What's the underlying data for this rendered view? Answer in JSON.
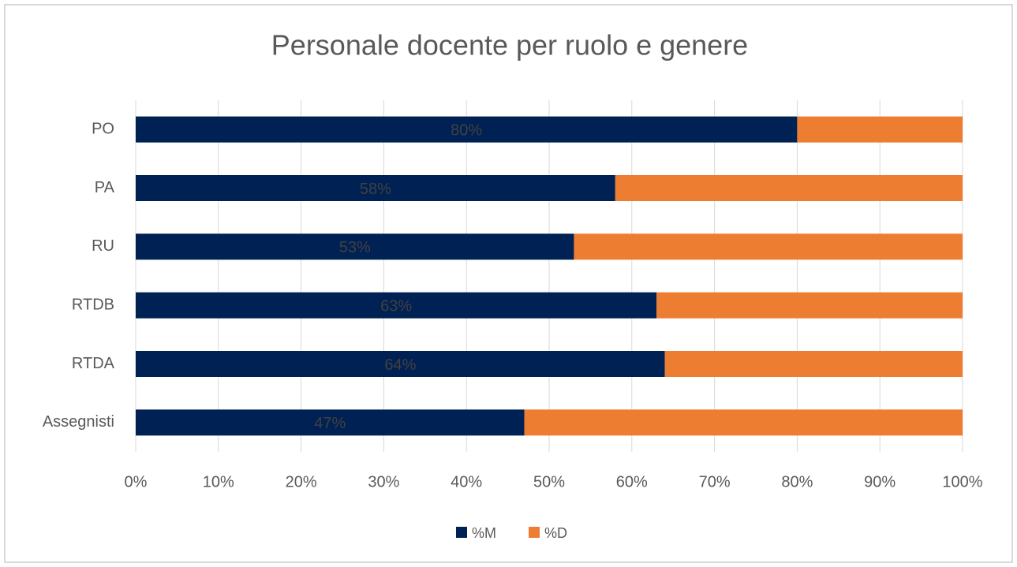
{
  "chart_data": {
    "type": "stacked_bar_horizontal",
    "title": "Personale docente per ruolo e genere",
    "categories": [
      "PO",
      "PA",
      "RU",
      "RTDB",
      "RTDA",
      "Assegnisti"
    ],
    "series": [
      {
        "name": "%M",
        "color": "#002153",
        "values": [
          80,
          58,
          53,
          63,
          64,
          47
        ],
        "value_labels": [
          "80%",
          "58%",
          "53%",
          "63%",
          "64%",
          "47%"
        ]
      },
      {
        "name": "%D",
        "color": "#ed7d31",
        "values": [
          20,
          42,
          47,
          37,
          36,
          53
        ]
      }
    ],
    "xlim": [
      0,
      100
    ],
    "xticks": [
      {
        "value": 0,
        "label": "0%"
      },
      {
        "value": 10,
        "label": "10%"
      },
      {
        "value": 20,
        "label": "20%"
      },
      {
        "value": 30,
        "label": "30%"
      },
      {
        "value": 40,
        "label": "40%"
      },
      {
        "value": 50,
        "label": "50%"
      },
      {
        "value": 60,
        "label": "60%"
      },
      {
        "value": 70,
        "label": "70%"
      },
      {
        "value": 80,
        "label": "80%"
      },
      {
        "value": 90,
        "label": "90%"
      },
      {
        "value": 100,
        "label": "100%"
      }
    ],
    "grid": true,
    "legend": "bottom"
  }
}
